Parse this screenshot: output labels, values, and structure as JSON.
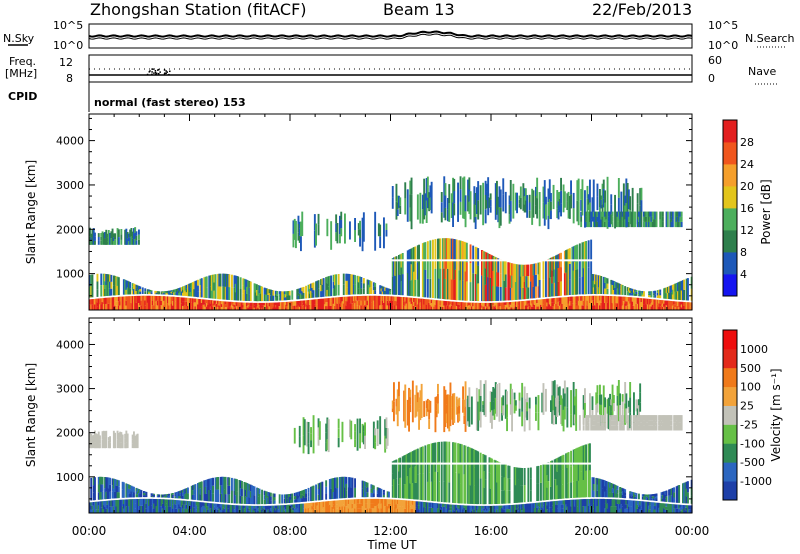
{
  "header": {
    "station": "Zhongshan Station (fitACF)",
    "beam": "Beam 13",
    "date": "22/Feb/2013"
  },
  "noise_panel": {
    "left_label": "N.Sky",
    "right_label": "N.Search",
    "ticks": [
      "10^5",
      "10^0"
    ]
  },
  "freq_panel": {
    "left_label": "Freq.",
    "left_unit": "[MHz]",
    "right_label": "Nave",
    "left_ticks": [
      "12",
      "8"
    ],
    "right_ticks": [
      "60",
      "0"
    ]
  },
  "cpid": {
    "label": "CPID",
    "value": "normal (fast stereo) 153"
  },
  "chart_data": [
    {
      "type": "heatmap",
      "quantity": "Power",
      "ylabel": "Slant Range [km]",
      "ylim": [
        180,
        4600
      ],
      "yticks": [
        "4000",
        "3000",
        "2000",
        "1000"
      ],
      "x": [
        "00:00",
        "04:00",
        "08:00",
        "12:00",
        "16:00",
        "20:00",
        "00:00"
      ],
      "colorbar_label": "Power [dB]",
      "colorbar_ticks": [
        "28",
        "24",
        "20",
        "16",
        "12",
        "8",
        "4"
      ],
      "colors": [
        "#1515f0",
        "#1d58b8",
        "#2e7f4c",
        "#4cae5c",
        "#e3c51b",
        "#f59f2b",
        "#f0561d",
        "#e31f1f"
      ]
    },
    {
      "type": "heatmap",
      "quantity": "Velocity",
      "ylabel": "Slant Range [km]",
      "ylim": [
        180,
        4600
      ],
      "yticks": [
        "4000",
        "3000",
        "2000",
        "1000"
      ],
      "x": [
        "00:00",
        "04:00",
        "08:00",
        "12:00",
        "16:00",
        "20:00",
        "00:00"
      ],
      "xlabel": "Time UT",
      "colorbar_label": "Velocity [m s⁻¹]",
      "colorbar_ticks": [
        "1000",
        "500",
        "100",
        "25",
        "-25",
        "-100",
        "-500",
        "-1000"
      ],
      "colors": [
        "#1d3fa8",
        "#2b66c0",
        "#2f8a55",
        "#66c046",
        "#c2c2b8",
        "#f2a33a",
        "#f07a1a",
        "#e32a1a",
        "#ee0d0d"
      ]
    }
  ]
}
